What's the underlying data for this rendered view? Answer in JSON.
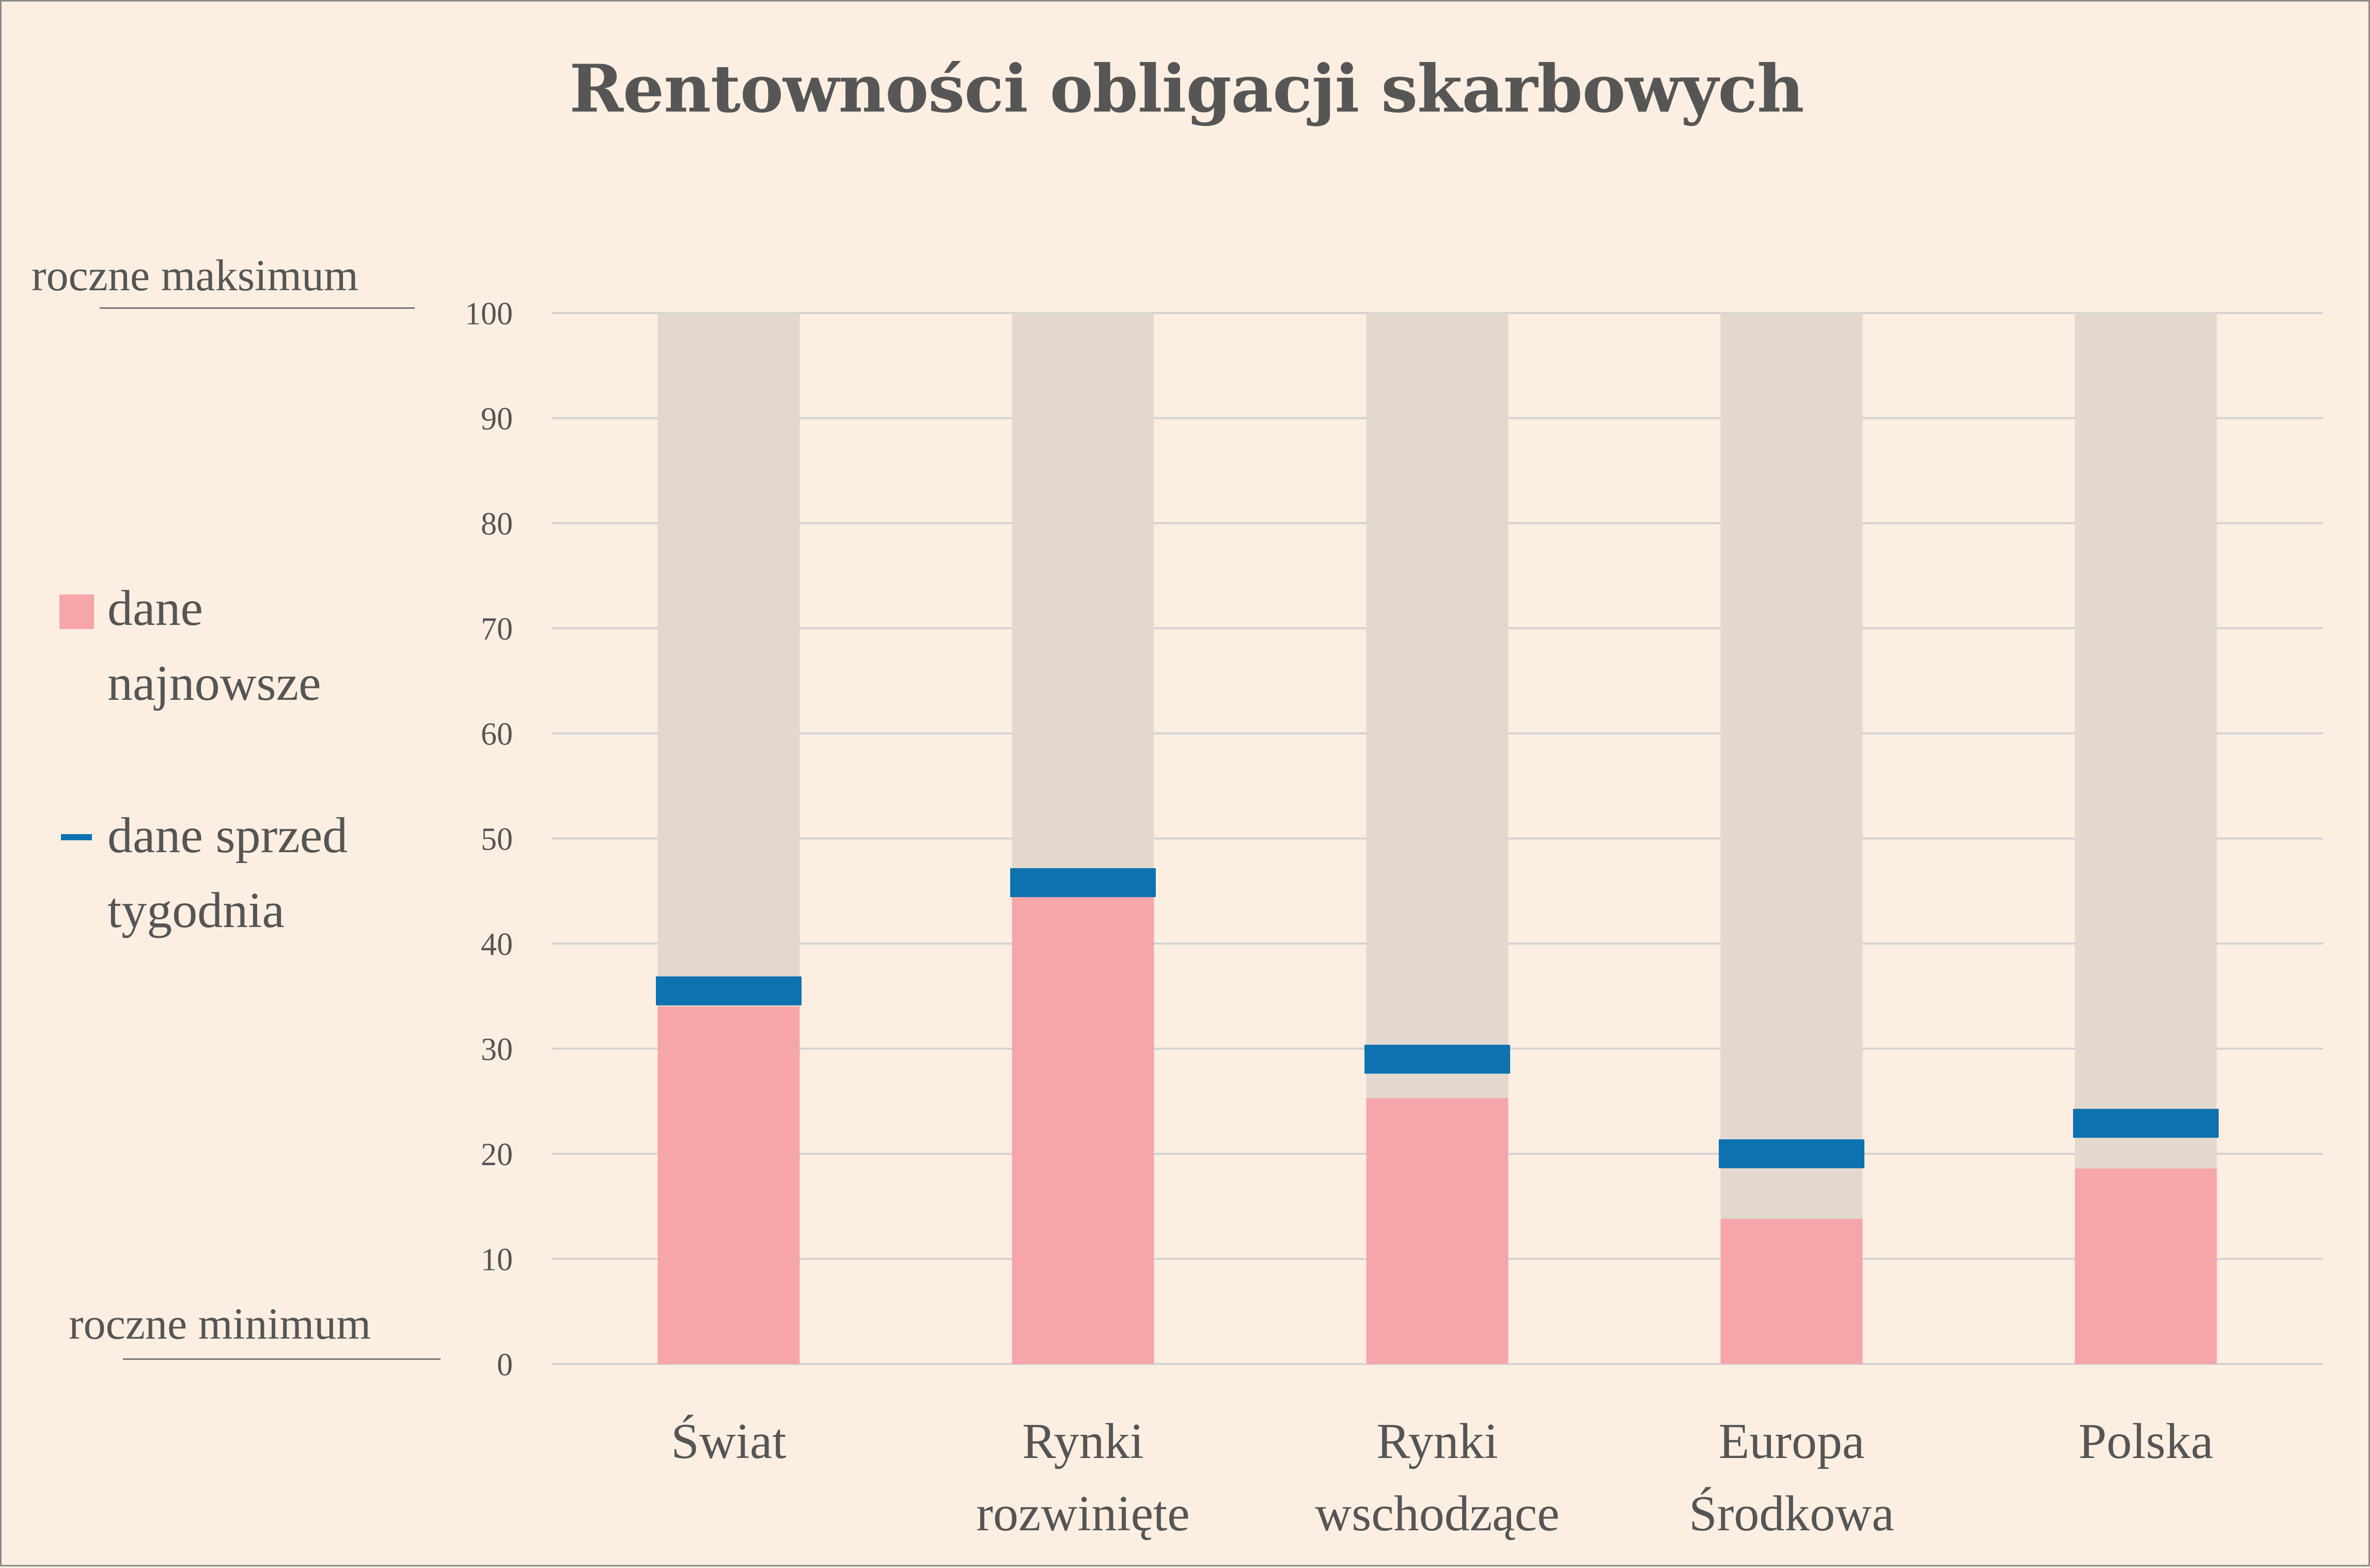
{
  "title": "Rentowności obligacji skarbowych",
  "top_label": "roczne maksimum",
  "bottom_label": "roczne minimum",
  "legend": {
    "latest_line1": "dane",
    "latest_line2": "najnowsze",
    "prev_line1": "dane sprzed",
    "prev_line2": "tygodnia"
  },
  "colors": {
    "background": "#fcefe2",
    "range": "#e2d8ce",
    "latest": "#f6a5aa",
    "previous": "#0e72b0",
    "grid": "#d4d2d4"
  },
  "chart_data": {
    "type": "bar",
    "title": "Rentowności obligacji skarbowych",
    "ylim": [
      0,
      100
    ],
    "yticks": [
      0,
      10,
      20,
      30,
      40,
      50,
      60,
      70,
      80,
      90,
      100
    ],
    "grid": true,
    "legend_position": "left",
    "categories": [
      [
        "Świat"
      ],
      [
        "Rynki",
        "rozwinięte"
      ],
      [
        "Rynki",
        "wschodzące"
      ],
      [
        "Europa",
        "Środkowa"
      ],
      [
        "Polska"
      ]
    ],
    "series": [
      {
        "name": "dane najnowsze",
        "values": [
          34,
          44.5,
          25.3,
          13.8,
          18.6
        ]
      },
      {
        "name": "dane sprzed tygodnia",
        "values": [
          35.5,
          45.8,
          29,
          20,
          22.9
        ]
      }
    ]
  }
}
